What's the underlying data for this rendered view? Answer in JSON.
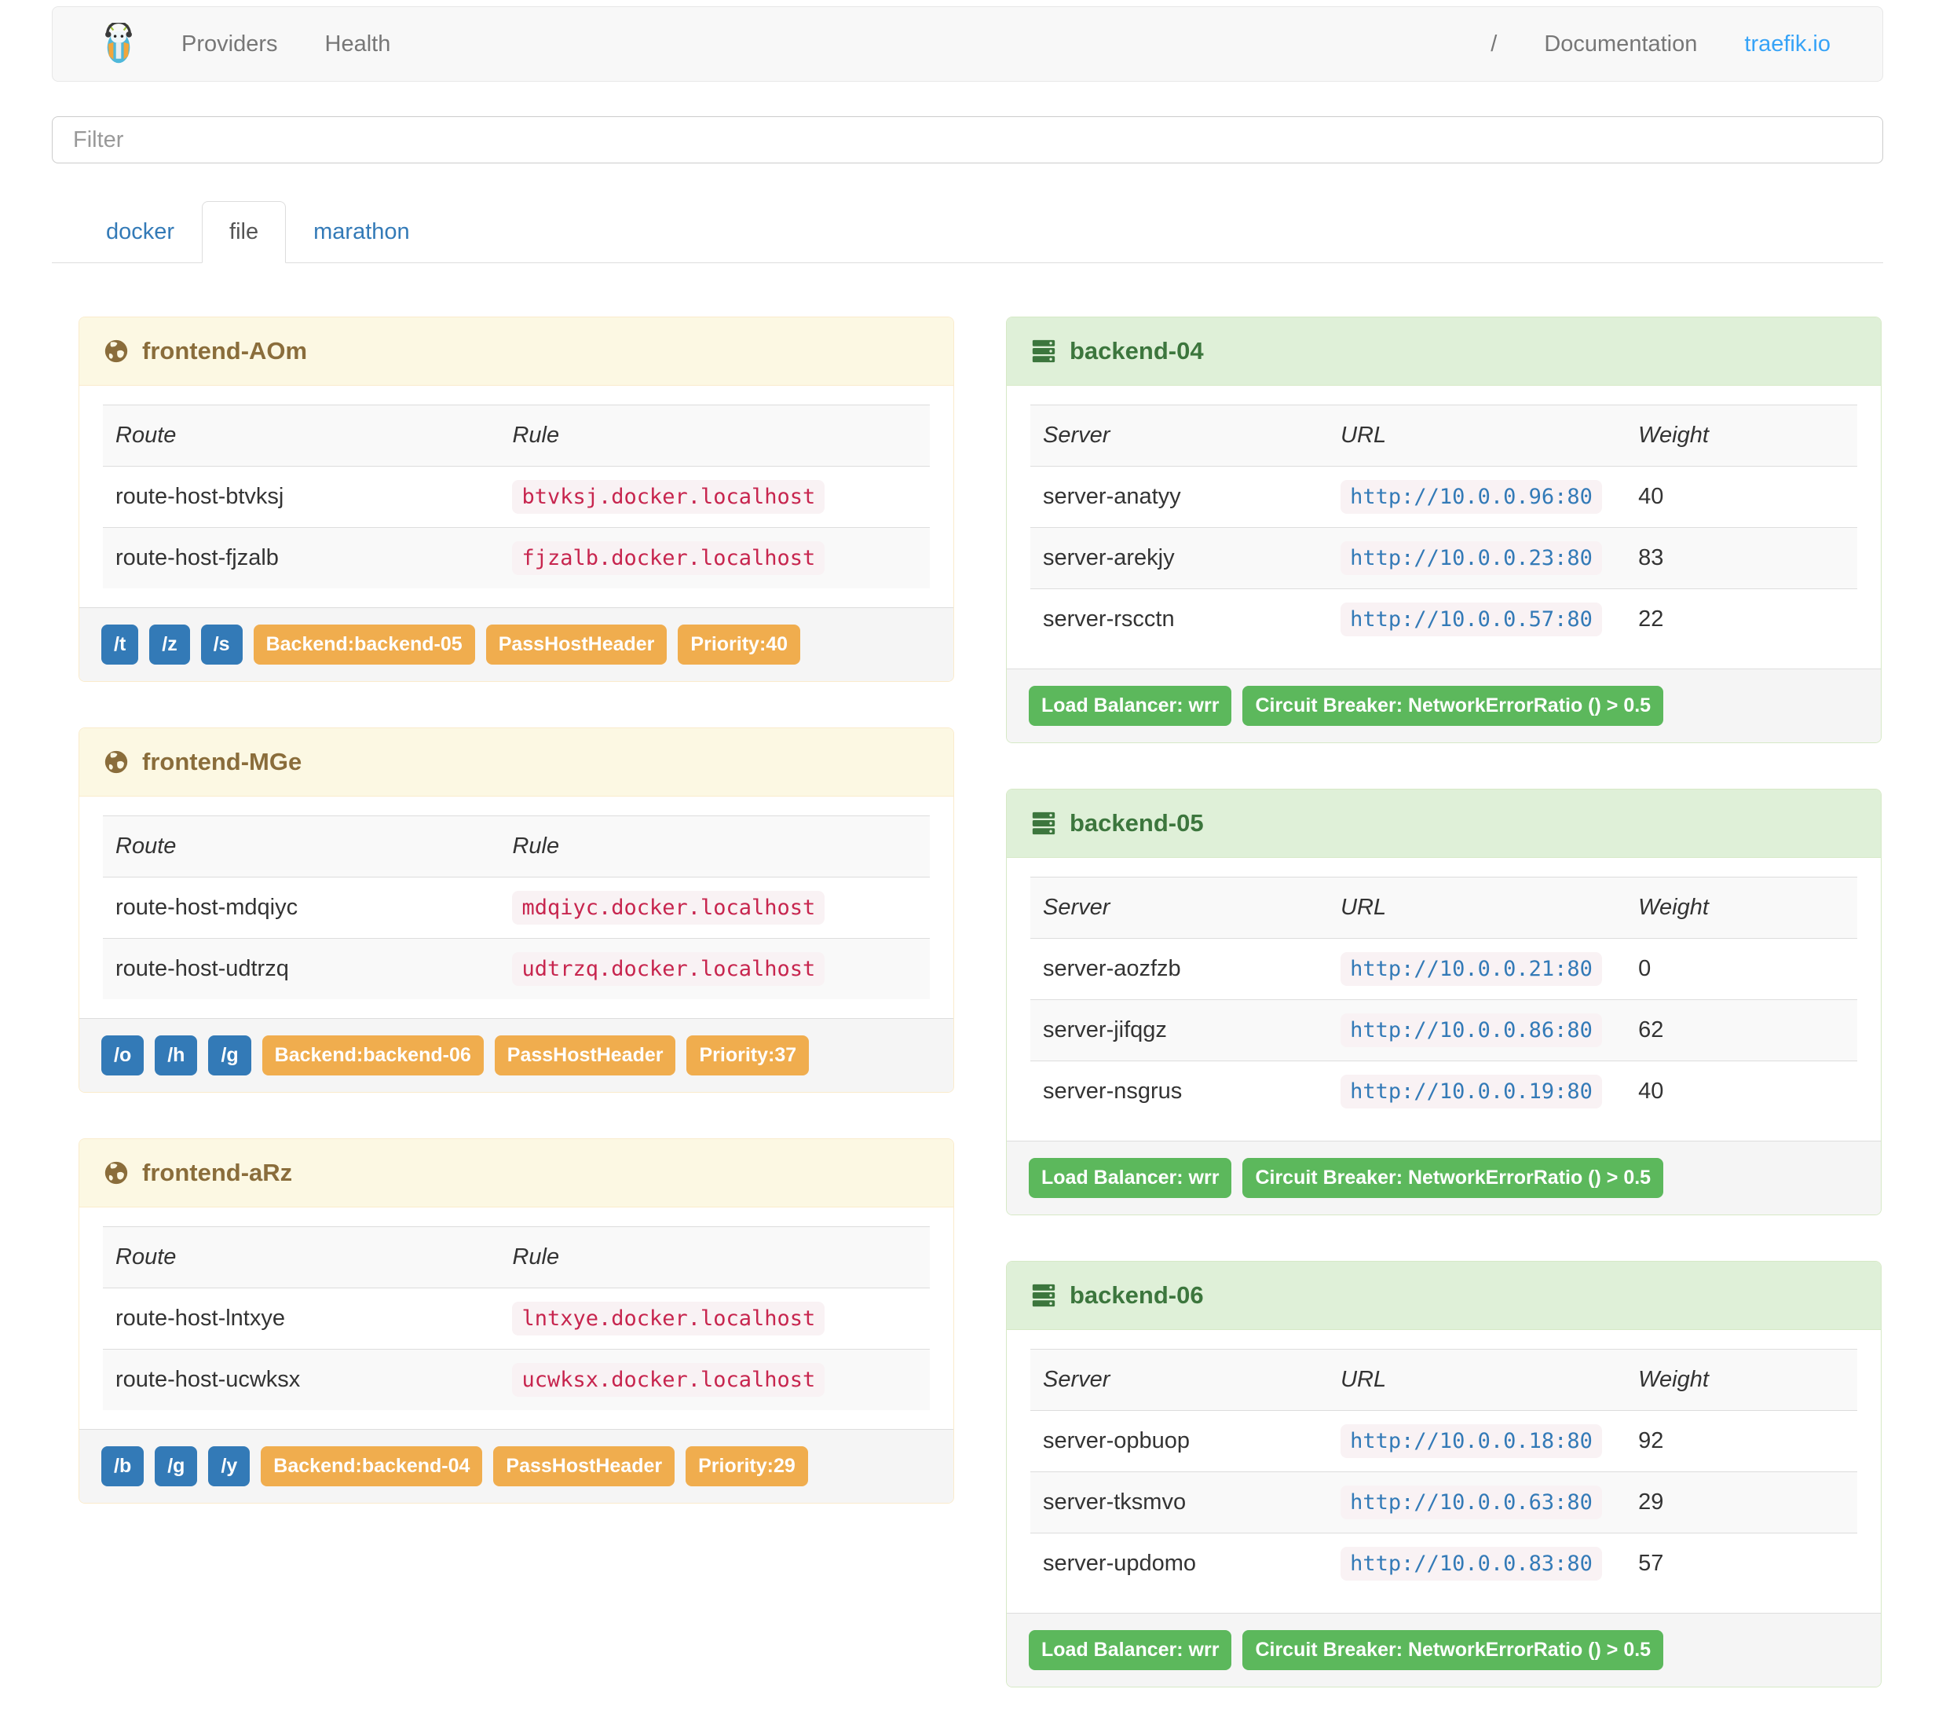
{
  "navbar": {
    "providers": "Providers",
    "health": "Health",
    "slash": "/",
    "documentation": "Documentation",
    "site_link": "traefik.io"
  },
  "filter": {
    "placeholder": "Filter",
    "value": ""
  },
  "tabs": {
    "docker": "docker",
    "file": "file",
    "marathon": "marathon",
    "active": "file"
  },
  "frontends": [
    {
      "title": "frontend-AOm",
      "columns": [
        "Route",
        "Rule"
      ],
      "rows": [
        {
          "route": "route-host-btvksj",
          "rule": "btvksj.docker.localhost"
        },
        {
          "route": "route-host-fjzalb",
          "rule": "fjzalb.docker.localhost"
        }
      ],
      "route_badges": [
        "/t",
        "/z",
        "/s"
      ],
      "prop_badges": [
        "Backend:backend-05",
        "PassHostHeader",
        "Priority:40"
      ]
    },
    {
      "title": "frontend-MGe",
      "columns": [
        "Route",
        "Rule"
      ],
      "rows": [
        {
          "route": "route-host-mdqiyc",
          "rule": "mdqiyc.docker.localhost"
        },
        {
          "route": "route-host-udtrzq",
          "rule": "udtrzq.docker.localhost"
        }
      ],
      "route_badges": [
        "/o",
        "/h",
        "/g"
      ],
      "prop_badges": [
        "Backend:backend-06",
        "PassHostHeader",
        "Priority:37"
      ]
    },
    {
      "title": "frontend-aRz",
      "columns": [
        "Route",
        "Rule"
      ],
      "rows": [
        {
          "route": "route-host-lntxye",
          "rule": "lntxye.docker.localhost"
        },
        {
          "route": "route-host-ucwksx",
          "rule": "ucwksx.docker.localhost"
        }
      ],
      "route_badges": [
        "/b",
        "/g",
        "/y"
      ],
      "prop_badges": [
        "Backend:backend-04",
        "PassHostHeader",
        "Priority:29"
      ]
    }
  ],
  "backends": [
    {
      "title": "backend-04",
      "columns": [
        "Server",
        "URL",
        "Weight"
      ],
      "rows": [
        {
          "server": "server-anatyy",
          "url": "http://10.0.0.96:80",
          "weight": "40"
        },
        {
          "server": "server-arekjy",
          "url": "http://10.0.0.23:80",
          "weight": "83"
        },
        {
          "server": "server-rscctn",
          "url": "http://10.0.0.57:80",
          "weight": "22"
        }
      ],
      "badges": [
        "Load Balancer: wrr",
        "Circuit Breaker: NetworkErrorRatio () > 0.5"
      ]
    },
    {
      "title": "backend-05",
      "columns": [
        "Server",
        "URL",
        "Weight"
      ],
      "rows": [
        {
          "server": "server-aozfzb",
          "url": "http://10.0.0.21:80",
          "weight": "0"
        },
        {
          "server": "server-jifqgz",
          "url": "http://10.0.0.86:80",
          "weight": "62"
        },
        {
          "server": "server-nsgrus",
          "url": "http://10.0.0.19:80",
          "weight": "40"
        }
      ],
      "badges": [
        "Load Balancer: wrr",
        "Circuit Breaker: NetworkErrorRatio () > 0.5"
      ]
    },
    {
      "title": "backend-06",
      "columns": [
        "Server",
        "URL",
        "Weight"
      ],
      "rows": [
        {
          "server": "server-opbuop",
          "url": "http://10.0.0.18:80",
          "weight": "92"
        },
        {
          "server": "server-tksmvo",
          "url": "http://10.0.0.63:80",
          "weight": "29"
        },
        {
          "server": "server-updomo",
          "url": "http://10.0.0.83:80",
          "weight": "57"
        }
      ],
      "badges": [
        "Load Balancer: wrr",
        "Circuit Breaker: NetworkErrorRatio () > 0.5"
      ]
    }
  ],
  "icons": {
    "brand": "traefik-logo",
    "frontend": "globe-icon",
    "backend": "server-stack-icon"
  },
  "colors": {
    "warning_bg": "#fcf8e3",
    "warning_border": "#faebcc",
    "warning_text": "#8a6d3b",
    "success_bg": "#dff0d8",
    "success_border": "#d6e9c6",
    "success_text": "#3c763d",
    "badge_blue": "#337ab7",
    "badge_orange": "#f0ad4e",
    "badge_green": "#5cb85c",
    "code_bg": "#f9f2f4",
    "rule_text": "#c7254e",
    "url_link": "#337ab7",
    "navbar_bg": "#f8f8f8",
    "site_link_blue": "#36a3f7"
  }
}
